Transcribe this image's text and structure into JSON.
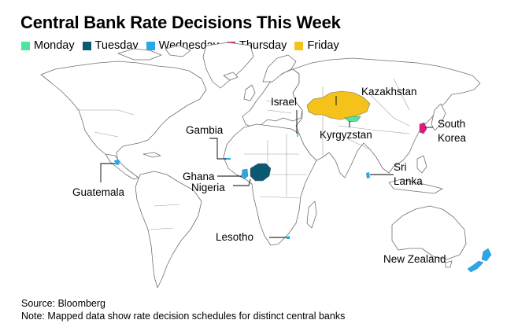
{
  "title": "Central Bank Rate Decisions This Week",
  "legend": [
    {
      "label": "Monday",
      "color": "#4ee5a0"
    },
    {
      "label": "Tuesday",
      "color": "#0b5873"
    },
    {
      "label": "Wednesday",
      "color": "#27a8e8"
    },
    {
      "label": "Thursday",
      "color": "#e0177f"
    },
    {
      "label": "Friday",
      "color": "#f5c21b"
    }
  ],
  "countries": {
    "israel": {
      "label": "Israel",
      "day": "Monday"
    },
    "kazakhstan": {
      "label": "Kazakhstan",
      "day": "Friday"
    },
    "kyrgyzstan": {
      "label": "Kyrgyzstan",
      "day": "Monday"
    },
    "south_korea": {
      "label": "South Korea",
      "line1": "South",
      "line2": "Korea",
      "day": "Thursday"
    },
    "gambia": {
      "label": "Gambia",
      "day": "Wednesday"
    },
    "ghana": {
      "label": "Ghana",
      "day": "Wednesday"
    },
    "nigeria": {
      "label": "Nigeria",
      "day": "Tuesday"
    },
    "guatemala": {
      "label": "Guatemala",
      "day": "Wednesday"
    },
    "sri_lanka": {
      "label": "Sri Lanka",
      "line1": "Sri",
      "line2": "Lanka",
      "day": "Wednesday"
    },
    "lesotho": {
      "label": "Lesotho",
      "day": "Wednesday"
    },
    "new_zealand": {
      "label": "New Zealand",
      "day": "Wednesday"
    }
  },
  "footer": {
    "source": "Source: Bloomberg",
    "note": "Note: Mapped data show rate decision schedules for distinct central banks"
  }
}
